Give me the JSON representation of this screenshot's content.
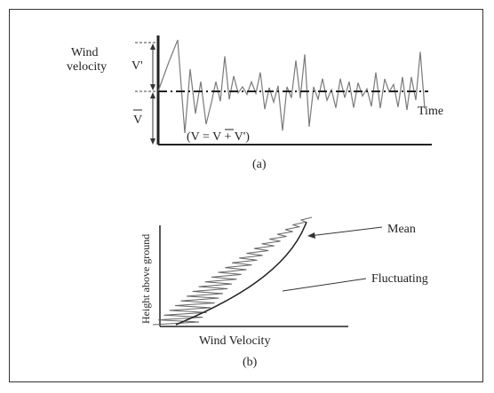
{
  "panel_a": {
    "ylabel_line1": "Wind",
    "ylabel_line2": "velocity",
    "v_prime": "V'",
    "v_bar": "V",
    "time_label": "Time",
    "equation": "(V = V + V')",
    "caption": "(a)"
  },
  "panel_b": {
    "ylabel": "Height above ground",
    "xlabel": "Wind Velocity",
    "mean_label": "Mean",
    "fluct_label": "Fluctuating",
    "caption": "(b)"
  },
  "colors": {
    "ink": "#222222",
    "trace": "#7a7a7a",
    "frame": "#333333"
  }
}
